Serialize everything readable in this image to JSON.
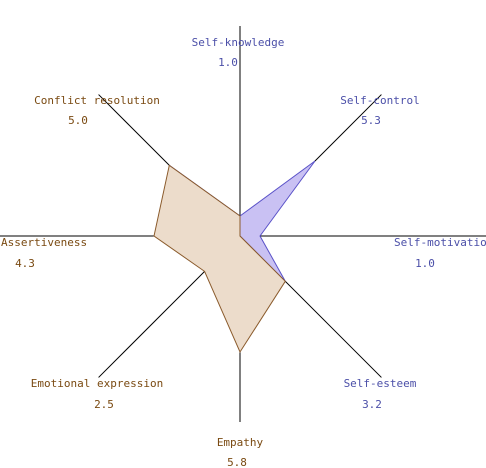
{
  "chart_data": {
    "type": "radar",
    "axes": [
      {
        "label": "Self-knowledge",
        "value_label": "1.0",
        "group": "intrapersonal"
      },
      {
        "label": "Self-control",
        "value_label": "5.3",
        "group": "intrapersonal"
      },
      {
        "label": "Self-motivation",
        "value_label": "1.0",
        "group": "intrapersonal"
      },
      {
        "label": "Self-esteem",
        "value_label": "3.2",
        "group": "intrapersonal"
      },
      {
        "label": "Empathy",
        "value_label": "5.8",
        "group": "interpersonal"
      },
      {
        "label": "Emotional expression",
        "value_label": "2.5",
        "group": "interpersonal"
      },
      {
        "label": "Assertiveness",
        "value_label": "4.3",
        "group": "interpersonal"
      },
      {
        "label": "Conflict resolution",
        "value_label": "5.0",
        "group": "interpersonal"
      }
    ],
    "scale_max": 10,
    "series": [
      {
        "values": [
          1.0,
          5.3,
          1.0,
          3.2,
          0,
          0,
          0,
          5.0
        ],
        "color": "#c9c1f3",
        "stroke": "#5a52c8"
      },
      {
        "values": [
          1.0,
          0,
          0,
          3.2,
          5.8,
          2.5,
          4.3,
          5.0
        ],
        "color": "#ecdccb",
        "stroke": "#8a5a2b"
      }
    ],
    "colors": {
      "intrapersonal_text": "#4b4fa8",
      "interpersonal_text": "#7a4a12",
      "axis": "#000000"
    }
  }
}
